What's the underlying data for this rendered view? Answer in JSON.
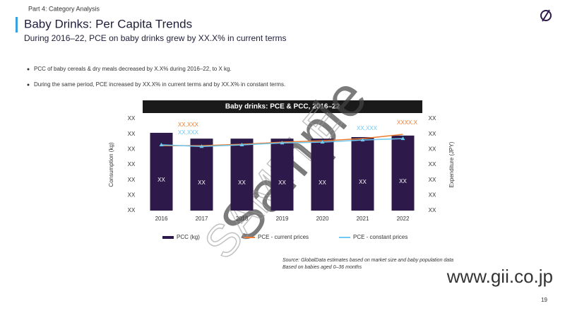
{
  "section": "Part 4: Category Analysis",
  "title": "Baby Drinks: Per Capita Trends",
  "subtitle": "During 2016–22, PCE on baby drinks grew by XX.X% in current terms",
  "bullets": [
    "PCC of baby cereals & dry meals decreased by X.X% during 2016–22, to X kg.",
    "During the same period, PCE increased by XX.X% in current terms and by XX.X% in constant terms."
  ],
  "source": [
    "Source: GlobalData estimates based on market size and baby population data",
    "Based on babies aged 0–36 months"
  ],
  "page_number": "19",
  "watermarks": [
    "Sample",
    "SAMPLE",
    "www.gii.co.jp"
  ],
  "chart_data": {
    "type": "bar-line",
    "title": "Baby drinks: PCE & PCC, 2016–22",
    "ylabel": "Consumption (kg)",
    "y2label": "Expenditure (JPY)",
    "categories": [
      "2016",
      "2017",
      "2018",
      "2019",
      "2020",
      "2021",
      "2022"
    ],
    "ylim": [
      0,
      6
    ],
    "yticks": [
      {
        "value": 0,
        "label": "XX"
      },
      {
        "value": 1,
        "label": "XX"
      },
      {
        "value": 2,
        "label": "XX"
      },
      {
        "value": 3,
        "label": "XX"
      },
      {
        "value": 4,
        "label": "XX"
      },
      {
        "value": 5,
        "label": "XX"
      },
      {
        "value": 6,
        "label": "XX"
      }
    ],
    "y2lim": [
      0,
      6
    ],
    "y2ticks": [
      {
        "value": 0,
        "label": "XX"
      },
      {
        "value": 1,
        "label": "XX"
      },
      {
        "value": 2,
        "label": "XX"
      },
      {
        "value": 3,
        "label": "XX"
      },
      {
        "value": 4,
        "label": "XX"
      },
      {
        "value": 5,
        "label": "XX"
      },
      {
        "value": 6,
        "label": "XX"
      }
    ],
    "grid": false,
    "series": [
      {
        "name": "PCC (kg)",
        "kind": "bar",
        "color": "#2e1a4a",
        "values": [
          5.08,
          4.7,
          4.7,
          4.7,
          4.7,
          4.8,
          4.9
        ],
        "value_labels": [
          "XX",
          "XX",
          "XX",
          "XX",
          "XX",
          "XX",
          "XX"
        ]
      },
      {
        "name": "PCE - current prices",
        "kind": "line",
        "axis": "y2",
        "color": "#ed7d31",
        "values": [
          4.24,
          4.24,
          4.33,
          4.47,
          4.56,
          4.7,
          4.98
        ],
        "value_labels": [
          "XX,XXX",
          null,
          null,
          null,
          null,
          null,
          "XXXX.X"
        ]
      },
      {
        "name": "PCE - constant prices",
        "kind": "line",
        "axis": "y2",
        "color": "#6fc8f0",
        "values": [
          4.29,
          4.19,
          4.29,
          4.42,
          4.47,
          4.61,
          4.7
        ],
        "value_labels": [
          "XX,XXX",
          null,
          null,
          null,
          null,
          "XX,XXX",
          null
        ]
      }
    ]
  }
}
